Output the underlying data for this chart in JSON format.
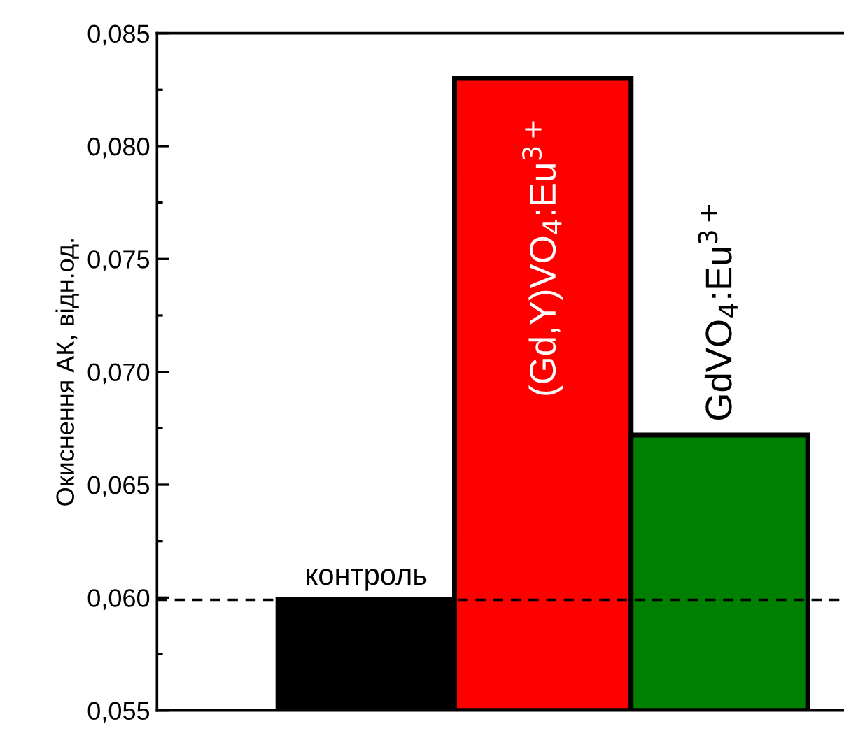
{
  "chart_data": {
    "type": "bar",
    "ylabel": "Окиснення АК, відн.од.",
    "categories": [
      null,
      null,
      null
    ],
    "values": [
      0.0599,
      0.083,
      0.0672
    ],
    "colors": [
      "#000000",
      "#ff0000",
      "#008000"
    ],
    "annotations": [
      "контроль",
      "(Gd,Y)VO$_{4}$:Eu$^{3+}$",
      "GdVO$_{4}$:Eu$^{3+}$"
    ],
    "ylim": [
      0.055,
      0.085
    ],
    "yticks": [
      {
        "value": 0.055,
        "label": "0,055"
      },
      {
        "value": 0.06,
        "label": "0,060"
      },
      {
        "value": 0.065,
        "label": "0,065"
      },
      {
        "value": 0.07,
        "label": "0,070"
      },
      {
        "value": 0.075,
        "label": "0,075"
      },
      {
        "value": 0.08,
        "label": "0,080"
      },
      {
        "value": 0.085,
        "label": "0,085"
      }
    ],
    "ref_lines": [
      {
        "axis": "y",
        "value": 0.0599,
        "color": "#000000",
        "line_style": "dashed"
      }
    ],
    "tick_labels": "y",
    "grid": false,
    "legend": false
  }
}
